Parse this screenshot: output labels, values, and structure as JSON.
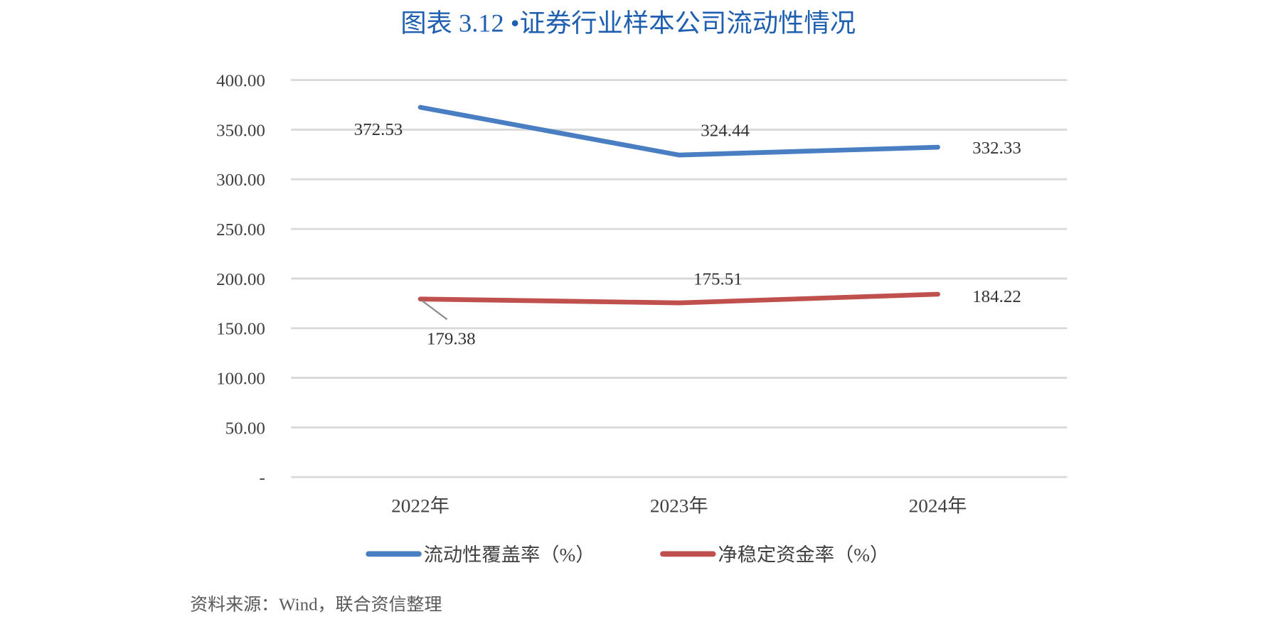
{
  "chart_data": {
    "type": "line",
    "title": "图表 3.12 •证券行业样本公司流动性情况",
    "categories": [
      "2022年",
      "2023年",
      "2024年"
    ],
    "ylim": [
      0,
      400
    ],
    "yticks": [
      "-",
      "50.00",
      "100.00",
      "150.00",
      "200.00",
      "250.00",
      "300.00",
      "350.00",
      "400.00"
    ],
    "grid": true,
    "legend_position": "bottom",
    "series": [
      {
        "name": "流动性覆盖率（%）",
        "color": "#4a7ec2",
        "values": [
          372.53,
          324.44,
          332.33
        ],
        "labels": [
          "372.53",
          "324.44",
          "332.33"
        ]
      },
      {
        "name": "净稳定资金率（%）",
        "color": "#c0504d",
        "values": [
          179.38,
          175.51,
          184.22
        ],
        "labels": [
          "179.38",
          "175.51",
          "184.22"
        ]
      }
    ],
    "source": "资料来源：Wind，联合资信整理"
  }
}
